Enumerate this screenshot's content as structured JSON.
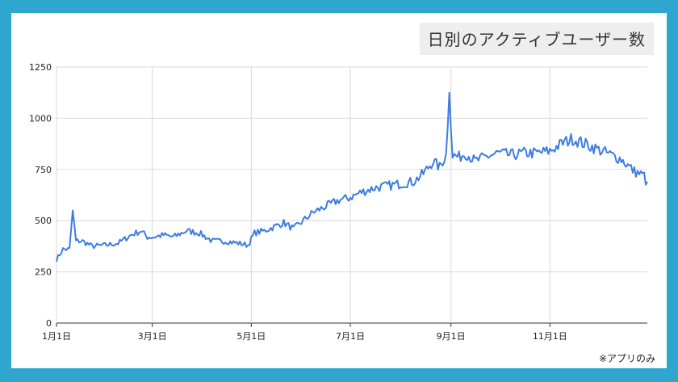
{
  "chart_data": {
    "type": "line",
    "title": "日別のアクティブユーザー数",
    "note": "※アプリのみ",
    "xlabel": "",
    "ylabel": "",
    "ylim": [
      0,
      1250
    ],
    "yticks": [
      0,
      250,
      500,
      750,
      1000,
      1250
    ],
    "x_tick_labels": [
      "1月1日",
      "3月1日",
      "5月1日",
      "7月1日",
      "9月1日",
      "11月1日"
    ],
    "x_tick_days": [
      0,
      59,
      120,
      181,
      243,
      304
    ],
    "grid": true,
    "line_color": "#3d7de0",
    "x_unit": "day of year",
    "series": [
      {
        "x": [
          0,
          4,
          8,
          10,
          12,
          16,
          22,
          30,
          38,
          46,
          52,
          56,
          60,
          66,
          72,
          80,
          88,
          96,
          104,
          112,
          118,
          122,
          128,
          134,
          140,
          146,
          152,
          158,
          166,
          174,
          180,
          188,
          196,
          204,
          212,
          220,
          226,
          232,
          236,
          240,
          242,
          244,
          248,
          252,
          258,
          264,
          272,
          280,
          288,
          296,
          304,
          312,
          318,
          324,
          330,
          336,
          342,
          348,
          352,
          356,
          359,
          362,
          364
        ],
        "values": [
          310,
          360,
          360,
          550,
          400,
          400,
          375,
          380,
          390,
          430,
          450,
          420,
          420,
          430,
          420,
          450,
          440,
          400,
          400,
          390,
          380,
          440,
          450,
          470,
          490,
          460,
          500,
          540,
          570,
          600,
          610,
          640,
          660,
          670,
          680,
          690,
          730,
          790,
          760,
          820,
          1125,
          820,
          810,
          830,
          790,
          810,
          830,
          820,
          830,
          830,
          840,
          880,
          900,
          880,
          860,
          840,
          820,
          800,
          770,
          740,
          730,
          720,
          670
        ]
      }
    ]
  }
}
